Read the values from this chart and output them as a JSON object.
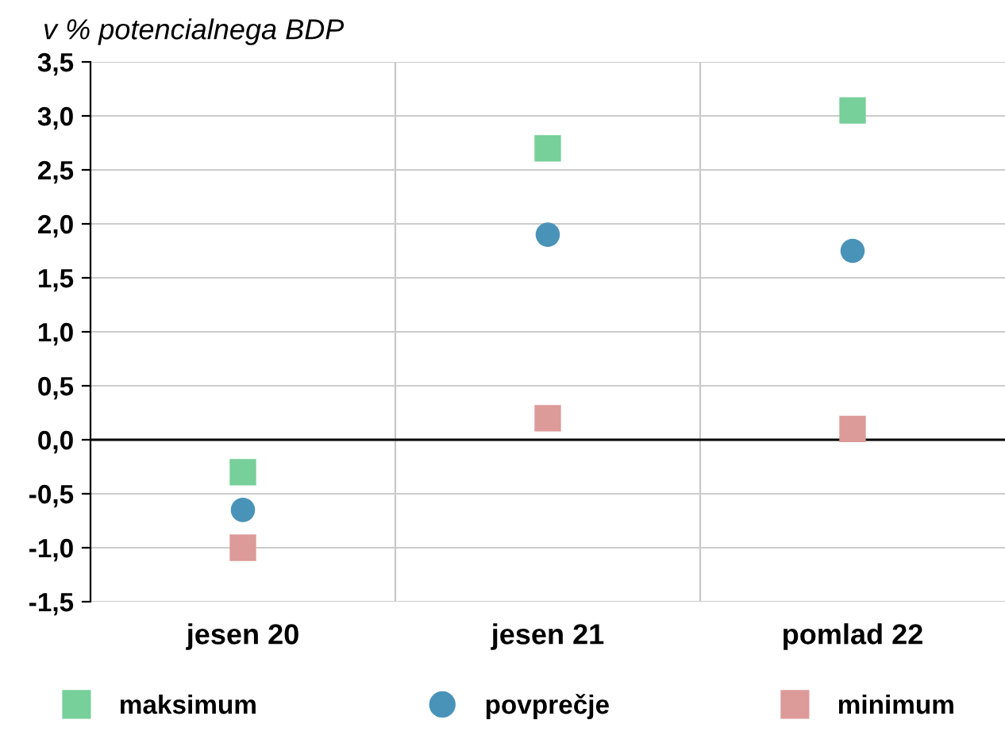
{
  "chart_data": {
    "type": "scatter",
    "ylabel": "v % potencialnega BDP",
    "categories": [
      "jesen 20",
      "jesen 21",
      "pomlad 22"
    ],
    "series": [
      {
        "name": "maksimum",
        "color": "#77cf9a",
        "marker": "square",
        "values": [
          -0.3,
          2.7,
          3.05
        ]
      },
      {
        "name": "povprečje",
        "color": "#4a93b8",
        "marker": "circle",
        "values": [
          -0.65,
          1.9,
          1.75
        ]
      },
      {
        "name": "minimum",
        "color": "#dc9a98",
        "marker": "square",
        "values": [
          -1.0,
          0.2,
          0.1
        ]
      }
    ],
    "ylim": [
      -1.5,
      3.5
    ],
    "yticks": [
      {
        "value": -1.5,
        "label": "-1,5"
      },
      {
        "value": -1.0,
        "label": "-1,0"
      },
      {
        "value": -0.5,
        "label": "-0,5"
      },
      {
        "value": 0,
        "label": "0,0"
      },
      {
        "value": 0.5,
        "label": "0,5"
      },
      {
        "value": 1.0,
        "label": "1,0"
      },
      {
        "value": 1.5,
        "label": "1,5"
      },
      {
        "value": 2.0,
        "label": "2,0"
      },
      {
        "value": 2.5,
        "label": "2,5"
      },
      {
        "value": 3.0,
        "label": "3,0"
      },
      {
        "value": 3.5,
        "label": "3,5"
      }
    ],
    "grid": "y",
    "legend": "bottom",
    "ref_lines": [
      {
        "axis": "y",
        "value": 0,
        "color": "#000000"
      }
    ]
  }
}
